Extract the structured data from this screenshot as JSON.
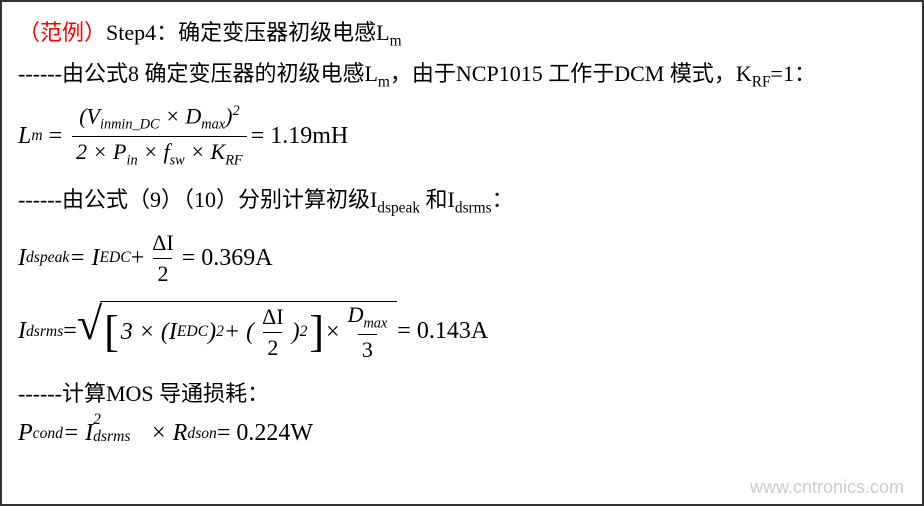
{
  "title": {
    "prefix": "（范例）",
    "step": "Step4：确定变压器初级电感L",
    "step_sub": "m"
  },
  "line1": {
    "dashes": "------",
    "text_a": "由公式8 确定变压器的初级电感L",
    "text_a_sub": "m",
    "text_b": "，由于NCP1015 工作于DCM 模式，K",
    "text_b_sub": "RF",
    "text_c": "=1："
  },
  "formula1": {
    "lhs": "L",
    "lhs_sub": "m",
    "num_a": "(V",
    "num_a_sub": "inmin_DC",
    "num_b": " × D",
    "num_b_sub": "max",
    "num_c": ")",
    "num_sup": "2",
    "den_a": "2 × P",
    "den_a_sub": "in",
    "den_b": " × f",
    "den_b_sub": "sw",
    "den_c": " × K",
    "den_c_sub": "RF",
    "result": " = 1.19mH"
  },
  "line2": {
    "dashes": "------",
    "text_a": "由公式（9）（10）分别计算初级I",
    "sub_a": "dspeak",
    "text_b": " 和I",
    "sub_b": "dsrms",
    "text_c": "："
  },
  "formula2": {
    "lhs": "I",
    "lhs_sub": "dspeak",
    "eq": " = I",
    "eq_sub": "EDC",
    "plus": " + ",
    "frac_num": "ΔI",
    "frac_den": "2",
    "result": " = 0.369A"
  },
  "formula3": {
    "lhs": "I",
    "lhs_sub": "dsrms",
    "eq": " = ",
    "inner_a": "3 × (I",
    "inner_a_sub": "EDC",
    "inner_b": ")",
    "inner_b_sup": "2",
    "inner_c": " + (",
    "frac1_num": "ΔI",
    "frac1_den": "2",
    "inner_d": ")",
    "inner_d_sup": "2",
    "times": " × ",
    "frac2_num_a": "D",
    "frac2_num_sub": "max",
    "frac2_den": "3",
    "result": " = 0.143A"
  },
  "line3": {
    "dashes": "------",
    "text": "计算MOS 导通损耗："
  },
  "formula4": {
    "lhs": "P",
    "lhs_sub": "cond",
    "eq": " = I",
    "eq_sup": "2",
    "eq_sub": "dsrms",
    "mid": " × R",
    "mid_sub": "dson",
    "result": " = 0.224W"
  },
  "watermark": "www.cntronics.com"
}
